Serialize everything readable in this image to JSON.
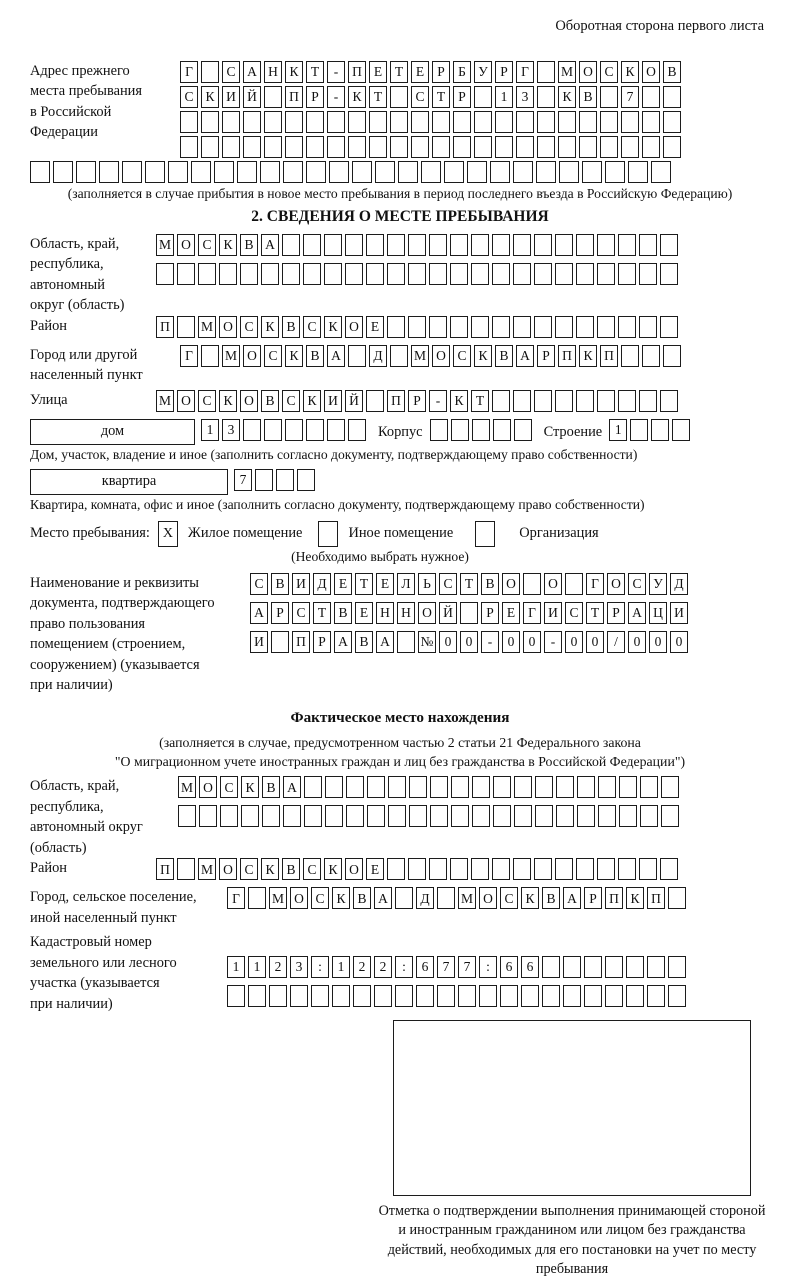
{
  "page": {
    "header_note": "Оборотная сторона первого листа"
  },
  "prev_address": {
    "label": "Адрес прежнего\nместа пребывания\nв Российской\nФедерации",
    "row1": {
      "text": "Г САНКТ-ПЕТЕРБУРГ МОСКОВ",
      "len": 24
    },
    "row2": {
      "text": "СКИЙ ПР-КТ СТР 13 КВ 7",
      "len": 24
    },
    "row3": {
      "text": "",
      "len": 24
    },
    "row4": {
      "text": "",
      "len": 24
    },
    "row5": {
      "text": "",
      "len": 28
    },
    "note": "(заполняется в случае прибытия в новое место пребывания в период последнего въезда в Российскую Федерацию)"
  },
  "section2": {
    "title": "2. СВЕДЕНИЯ О МЕСТЕ ПРЕБЫВАНИЯ",
    "region": {
      "label": "Область, край,\nреспублика,\nавтономный\nокруг (область)",
      "row1": {
        "text": "МОСКВА",
        "len": 25
      },
      "row2": {
        "text": "",
        "len": 25
      }
    },
    "district": {
      "label": "Район",
      "row": {
        "text": "П МОСКВСКОЕ",
        "len": 25
      }
    },
    "city": {
      "label": "Город или другой\nнаселенный пункт",
      "row": {
        "text": "Г МОСКВА Д МОСКВАРПКП",
        "len": 24
      }
    },
    "street": {
      "label": "Улица",
      "row": {
        "text": "МОСКОВСКИЙ ПР-КТ",
        "len": 25
      }
    },
    "house": {
      "box_label": "дом",
      "cells": {
        "text": "13",
        "len": 8
      },
      "korpus_label": "Корпус",
      "korpus_cells": {
        "text": "",
        "len": 5
      },
      "stroenie_label": "Строение",
      "stroenie_cells": {
        "text": "1",
        "len": 4
      },
      "note": "Дом, участок, владение и иное (заполнить согласно документу, подтверждающему право собственности)"
    },
    "apartment": {
      "box_label": "квартира",
      "cells": {
        "text": "7",
        "len": 4
      },
      "note": "Квартира, комната, офис и иное (заполнить согласно документу, подтверждающему право собственности)"
    },
    "stay_type": {
      "label": "Место пребывания:",
      "options": [
        {
          "label": "Жилое помещение",
          "checked": true
        },
        {
          "label": "Иное помещение",
          "checked": false
        },
        {
          "label": "Организация",
          "checked": false
        }
      ],
      "note": "(Необходимо выбрать нужное)"
    },
    "document": {
      "label": "Наименование и реквизиты\nдокумента, подтверждающего\nправо пользования\nпомещением (строением,\nсооружением) (указывается\nпри наличии)",
      "row1": {
        "text": "СВИДЕТЕЛЬСТВО О ГОСУД",
        "len": 21
      },
      "row2": {
        "text": "АРСТВЕННОЙ РЕГИСТРАЦИ",
        "len": 21
      },
      "row3": {
        "text": "И ПРАВА №00-00-00/000",
        "len": 21
      }
    }
  },
  "actual_location": {
    "title": "Фактическое место нахождения",
    "note_line1": "(заполняется в случае, предусмотренном частью 2 статьи 21 Федерального закона",
    "note_line2": "\"О миграционном учете иностранных граждан и лиц без гражданства в Российской Федерации\")",
    "region": {
      "label": "Область, край,\nреспублика,\nавтономный округ\n(область)",
      "row1": {
        "text": "МОСКВА",
        "len": 24
      },
      "row2": {
        "text": "",
        "len": 24
      }
    },
    "district": {
      "label": "Район",
      "row": {
        "text": "П МОСКВСКОЕ",
        "len": 25
      }
    },
    "city": {
      "label": "Город, сельское поселение,\nиной населенный пункт",
      "row": {
        "text": "Г МОСКВА Д МОСКВАРПКП",
        "len": 22
      }
    },
    "cadastral": {
      "label": "Кадастровый номер\nземельного или лесного\nучастка (указывается\nпри наличии)",
      "row1": {
        "text": "1123:122:677:66",
        "len": 22
      },
      "row2": {
        "text": "",
        "len": 22
      }
    },
    "stamp_caption": "Отметка о подтверждении выполнения принимающей стороной и иностранным гражданином или лицом без гражданства действий, необходимых для его постановки на учет по месту пребывания"
  }
}
